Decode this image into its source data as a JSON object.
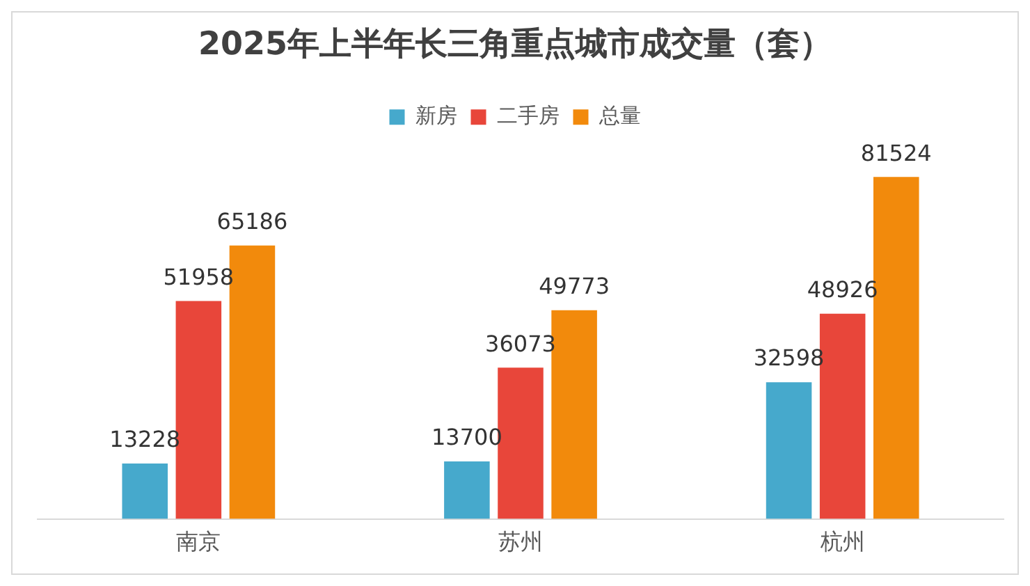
{
  "chart_data": {
    "type": "bar",
    "title": "2025年上半年长三角重点城市成交量（套）",
    "categories": [
      "南京",
      "苏州",
      "杭州"
    ],
    "series": [
      {
        "name": "新房",
        "color": "#46a9cc",
        "values": [
          13228,
          13700,
          32598
        ]
      },
      {
        "name": "二手房",
        "color": "#e8463a",
        "values": [
          51958,
          36073,
          48926
        ]
      },
      {
        "name": "总量",
        "color": "#f28a0c",
        "values": [
          65186,
          49773,
          81524
        ]
      }
    ],
    "data_labels": true,
    "legend": "top",
    "grid": false
  }
}
